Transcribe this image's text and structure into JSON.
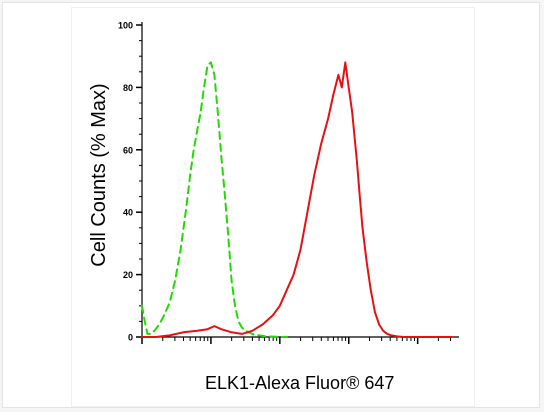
{
  "chart_data": {
    "type": "line",
    "xlabel": "ELK1-Alexa Fluor® 647",
    "ylabel": "Cell Counts (% Max)",
    "ylim": [
      0,
      100
    ],
    "y_ticks": [
      0,
      20,
      40,
      60,
      80,
      100
    ],
    "x_scale": "log",
    "x_range_decades": [
      0,
      4.6
    ],
    "grid": false,
    "legend": "none",
    "series": [
      {
        "color": "#1fdc00",
        "style": "dashed",
        "x": [
          0.0,
          0.04,
          0.08,
          0.13,
          0.18,
          0.25,
          0.32,
          0.4,
          0.48,
          0.56,
          0.64,
          0.7,
          0.75,
          0.8,
          0.85,
          0.9,
          0.95,
          1.0,
          1.05,
          1.1,
          1.15,
          1.2,
          1.25,
          1.3,
          1.35,
          1.4,
          1.45,
          1.5,
          1.55,
          1.6,
          1.7,
          1.8,
          1.95,
          2.1
        ],
        "values": [
          10,
          5,
          1,
          1,
          2,
          4,
          7,
          11,
          18,
          28,
          41,
          52,
          60,
          66,
          72,
          80,
          87,
          88,
          84,
          72,
          58,
          46,
          33,
          18,
          10,
          5,
          3,
          2,
          1.5,
          1,
          0.5,
          0.2,
          0.1,
          0
        ]
      },
      {
        "color": "#e81010",
        "style": "solid",
        "x": [
          0.0,
          0.2,
          0.4,
          0.6,
          0.8,
          0.95,
          1.05,
          1.15,
          1.3,
          1.45,
          1.6,
          1.75,
          1.9,
          2.0,
          2.1,
          2.2,
          2.3,
          2.4,
          2.5,
          2.6,
          2.7,
          2.78,
          2.85,
          2.9,
          2.95,
          3.0,
          3.05,
          3.08,
          3.12,
          3.16,
          3.2,
          3.26,
          3.32,
          3.38,
          3.44,
          3.5,
          3.56,
          3.62,
          3.7,
          3.8,
          3.95,
          4.1,
          4.3,
          4.5
        ],
        "values": [
          0,
          0,
          0.5,
          1.5,
          2,
          2.5,
          3.5,
          2.5,
          1.5,
          1,
          2,
          4,
          7,
          10,
          15,
          20,
          28,
          40,
          52,
          62,
          70,
          78,
          84,
          80,
          88,
          80,
          72,
          65,
          56,
          45,
          35,
          24,
          15,
          8,
          4,
          2,
          1,
          0.5,
          0.2,
          0,
          0,
          0,
          0,
          0
        ]
      }
    ]
  }
}
